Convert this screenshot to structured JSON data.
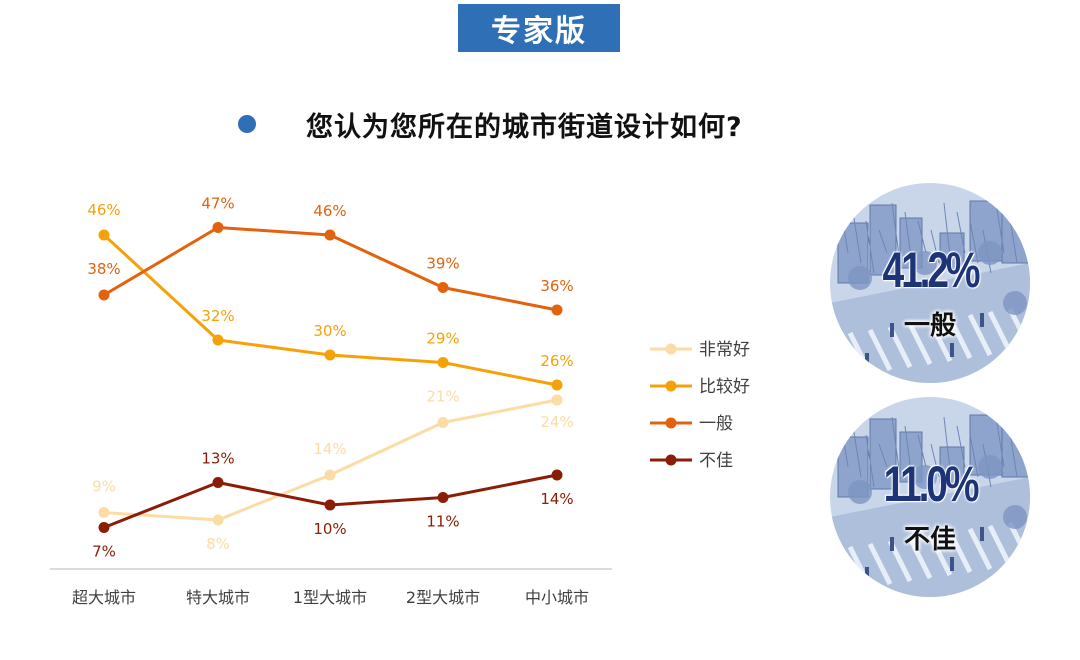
{
  "header": {
    "badge": "专家版"
  },
  "question": "您认为您所在的城市街道设计如何?",
  "chart_data": {
    "type": "line",
    "categories": [
      "超大城市",
      "特大城市",
      "1型大城市",
      "2型大城市",
      "中小城市"
    ],
    "ylim": [
      0,
      50
    ],
    "legend_position": "right",
    "series": [
      {
        "name": "非常好",
        "values": [
          9,
          8,
          14,
          21,
          24
        ],
        "labels": [
          "9%",
          "8%",
          "14%",
          "21%",
          "24%"
        ],
        "color": "#fbdca4"
      },
      {
        "name": "比较好",
        "values": [
          46,
          32,
          30,
          29,
          26
        ],
        "labels": [
          "46%",
          "32%",
          "30%",
          "29%",
          "26%"
        ],
        "color": "#f5a20a"
      },
      {
        "name": "一般",
        "values": [
          38,
          47,
          46,
          39,
          36
        ],
        "labels": [
          "38%",
          "47%",
          "46%",
          "39%",
          "36%"
        ],
        "color": "#e2620e"
      },
      {
        "name": "不佳",
        "values": [
          7,
          13,
          10,
          11,
          14
        ],
        "labels": [
          "7%",
          "13%",
          "10%",
          "11%",
          "14%"
        ],
        "color": "#8b1c06"
      }
    ]
  },
  "stats": [
    {
      "value": "41.2%",
      "label": "一般"
    },
    {
      "value": "11.0%",
      "label": "不佳"
    }
  ],
  "colors": {
    "accent": "#2e6fb5",
    "stat_text": "#1e3478",
    "axis": "#d0d0d0",
    "tick_text": "#404040"
  }
}
